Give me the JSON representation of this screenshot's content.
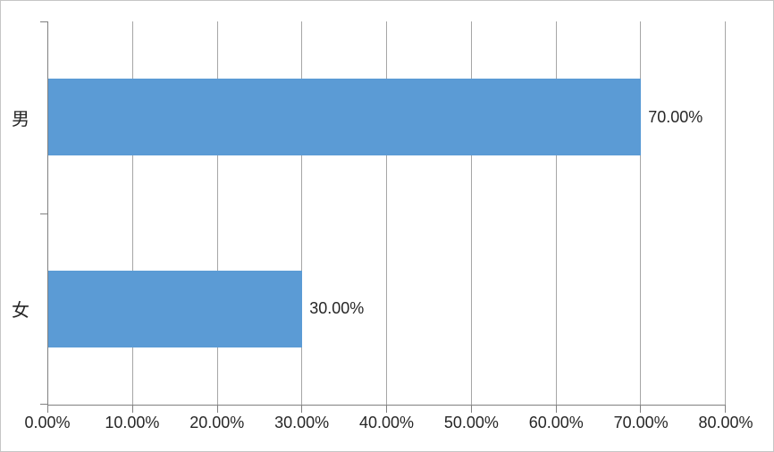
{
  "chart_data": {
    "type": "bar",
    "orientation": "horizontal",
    "title": "",
    "categories": [
      "男",
      "女"
    ],
    "series": [
      {
        "name": "",
        "values": [
          70,
          30
        ]
      }
    ],
    "value_labels": [
      "70.00%",
      "30.00%"
    ],
    "x_tick_values": [
      0,
      10,
      20,
      30,
      40,
      50,
      60,
      70,
      80
    ],
    "x_tick_labels": [
      "0.00%",
      "10.00%",
      "20.00%",
      "30.00%",
      "40.00%",
      "50.00%",
      "60.00%",
      "70.00%",
      "80.00%"
    ],
    "xlim": [
      0,
      80
    ],
    "grid": true,
    "legend": "none",
    "colors": {
      "bar": "#5B9BD5",
      "gridline": "#A6A6A6",
      "axis": "#808080",
      "text": "#262626",
      "frame_border": "#C6C6C6",
      "background": "#FFFFFF"
    }
  }
}
